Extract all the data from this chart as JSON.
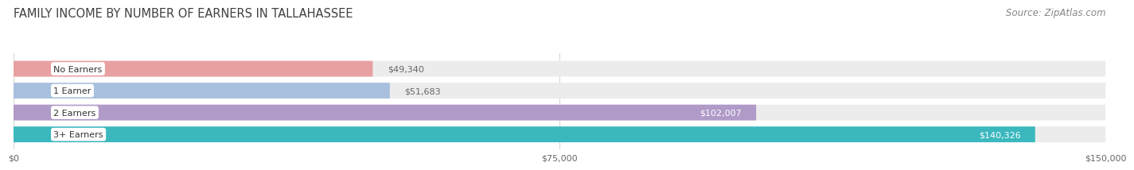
{
  "title": "FAMILY INCOME BY NUMBER OF EARNERS IN TALLAHASSEE",
  "source": "Source: ZipAtlas.com",
  "categories": [
    "No Earners",
    "1 Earner",
    "2 Earners",
    "3+ Earners"
  ],
  "values": [
    49340,
    51683,
    102007,
    140326
  ],
  "labels": [
    "$49,340",
    "$51,683",
    "$102,007",
    "$140,326"
  ],
  "bar_colors": [
    "#e8a0a0",
    "#a8c0de",
    "#b09ac8",
    "#3ab8be"
  ],
  "bar_bg_colors": [
    "#ececec",
    "#ececec",
    "#ececec",
    "#ececec"
  ],
  "label_colors": [
    "#555555",
    "#555555",
    "#ffffff",
    "#ffffff"
  ],
  "xmax": 150000,
  "xticks": [
    0,
    75000,
    150000
  ],
  "xticklabels": [
    "$0",
    "$75,000",
    "$150,000"
  ],
  "title_fontsize": 10.5,
  "source_fontsize": 8.5,
  "background_color": "#ffffff",
  "bar_height": 0.72,
  "bar_gap": 1.0
}
